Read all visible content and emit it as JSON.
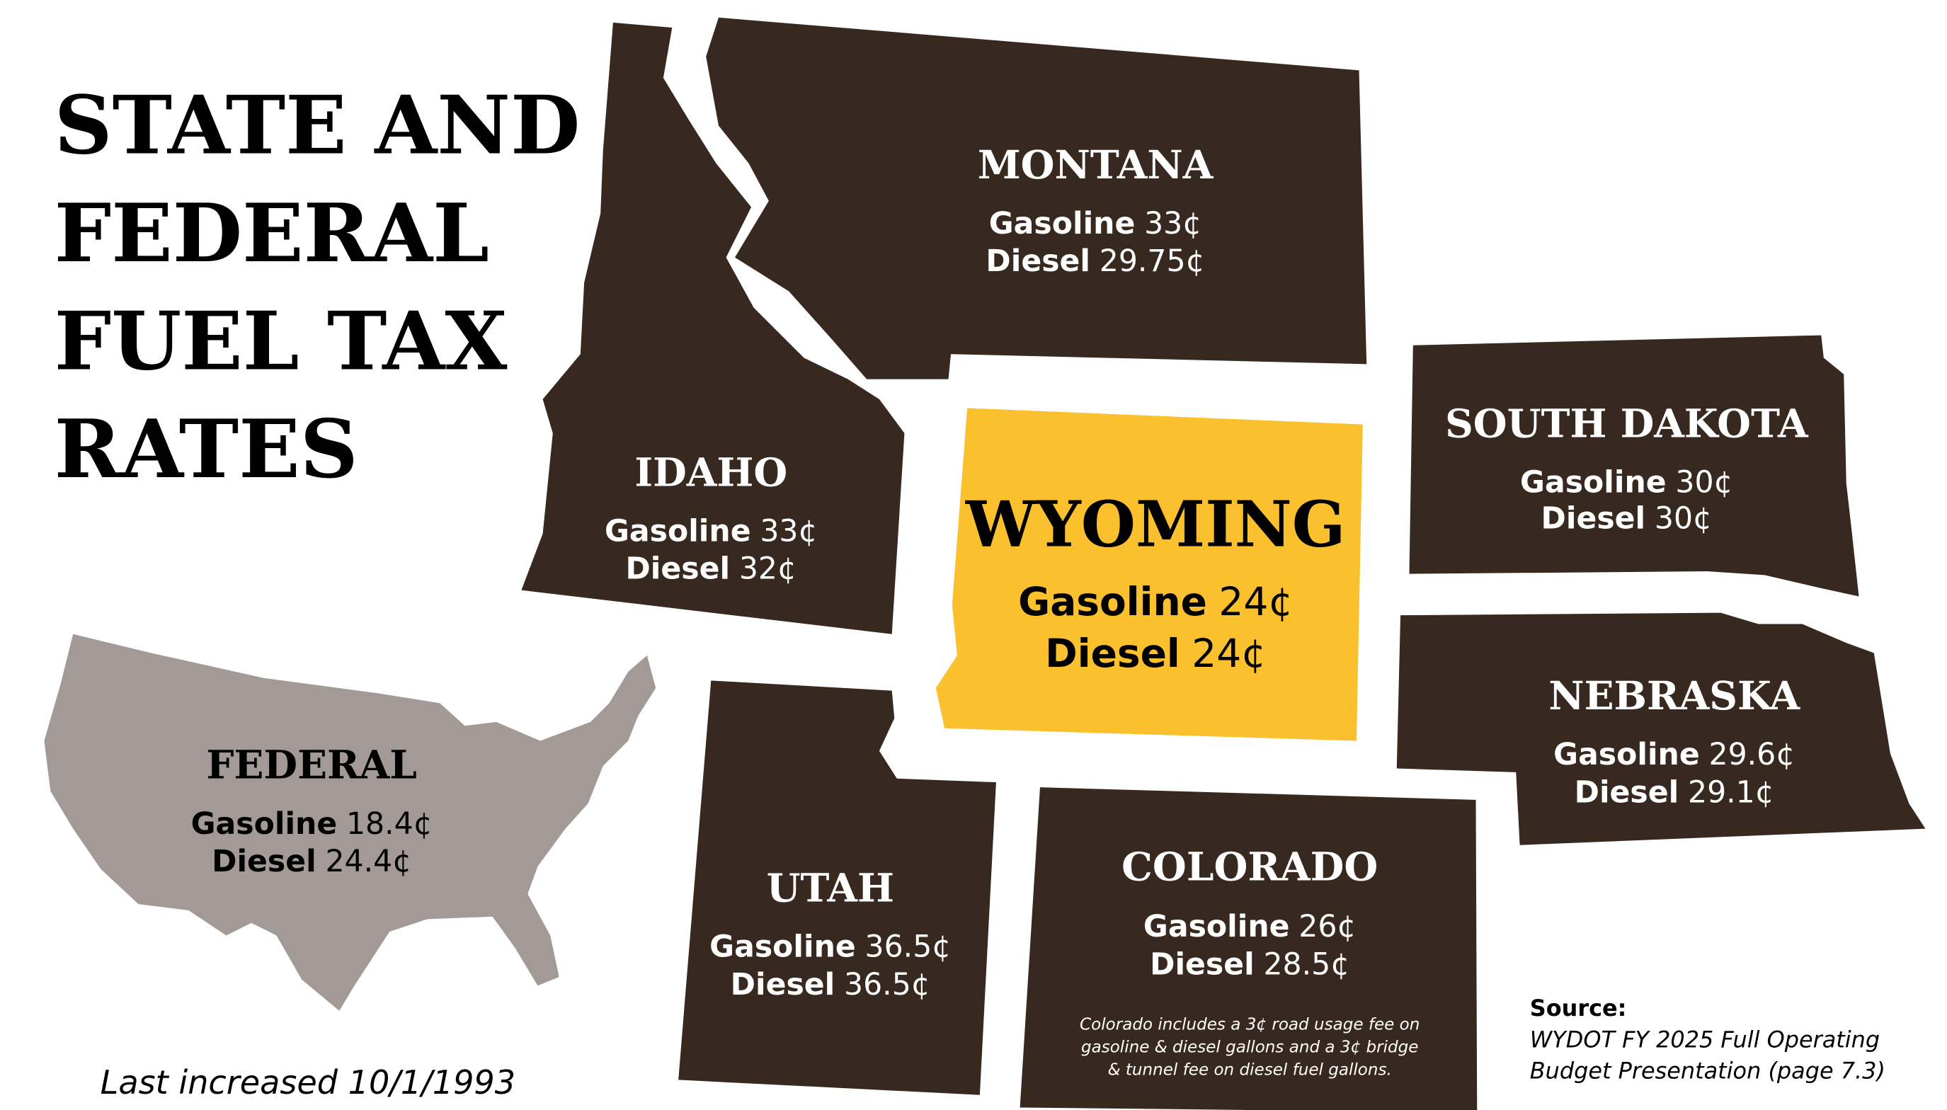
{
  "title": [
    "STATE AND",
    "FEDERAL",
    "FUEL TAX",
    "RATES"
  ],
  "fuel_labels": {
    "gasoline": "Gasoline",
    "diesel": "Diesel"
  },
  "regions": [
    {
      "name": "MONTANA",
      "gasoline": "33¢",
      "diesel": "29.75¢"
    },
    {
      "name": "IDAHO",
      "gasoline": "33¢",
      "diesel": "32¢"
    },
    {
      "name": "WYOMING",
      "gasoline": "24¢",
      "diesel": "24¢"
    },
    {
      "name": "SOUTH DAKOTA",
      "gasoline": "30¢",
      "diesel": "30¢"
    },
    {
      "name": "NEBRASKA",
      "gasoline": "29.6¢",
      "diesel": "29.1¢"
    },
    {
      "name": "UTAH",
      "gasoline": "36.5¢",
      "diesel": "36.5¢"
    },
    {
      "name": "COLORADO",
      "gasoline": "26¢",
      "diesel": "28.5¢"
    },
    {
      "name": "FEDERAL",
      "gasoline": "18.4¢",
      "diesel": "24.4¢"
    }
  ],
  "colorado_note": [
    "Colorado includes a 3¢ road usage fee on",
    "gasoline & diesel gallons and a 3¢ bridge",
    "& tunnel fee on diesel fuel gallons."
  ],
  "federal_note": "Last increased 10/1/1993",
  "source": {
    "label": "Source:",
    "lines": [
      "WYDOT FY 2025 Full Operating",
      "Budget Presentation (page 7.3)"
    ]
  }
}
